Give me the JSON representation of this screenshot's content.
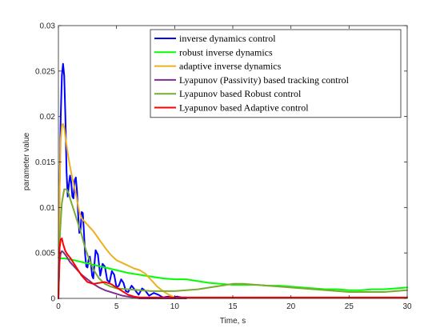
{
  "chart_data": {
    "type": "line",
    "xlabel": "Time, s",
    "ylabel": "parameter value",
    "xlim": [
      0,
      30
    ],
    "ylim": [
      0,
      0.03
    ],
    "xticks": [
      0,
      5,
      10,
      15,
      20,
      25,
      30
    ],
    "yticks": [
      0,
      0.005,
      0.01,
      0.015,
      0.02,
      0.025,
      0.03
    ],
    "xtick_labels": [
      "0",
      "5",
      "10",
      "15",
      "20",
      "25",
      "30"
    ],
    "ytick_labels": [
      "0",
      "0.005",
      "0.01",
      "0.015",
      "0.02",
      "0.025",
      "0.03"
    ],
    "grid": false,
    "legend_position": "top-right",
    "series": [
      {
        "name": "inverse dynamics control",
        "color": "#0000FF",
        "x": [
          0,
          0.1,
          0.2,
          0.3,
          0.4,
          0.5,
          0.6,
          0.7,
          0.8,
          0.9,
          1.0,
          1.1,
          1.2,
          1.3,
          1.4,
          1.5,
          1.6,
          1.7,
          1.8,
          1.9,
          2.0,
          2.1,
          2.2,
          2.3,
          2.4,
          2.5,
          2.6,
          2.7,
          2.8,
          2.9,
          3.0,
          3.2,
          3.4,
          3.6,
          3.8,
          4.0,
          4.2,
          4.4,
          4.6,
          4.8,
          5.0,
          5.2,
          5.4,
          5.6,
          5.8,
          6.0,
          6.3,
          6.6,
          6.9,
          7.2,
          7.5,
          7.8,
          8.2,
          8.6,
          9.0,
          9.4,
          9.8,
          10.2,
          10.6,
          11.0
        ],
        "y": [
          0,
          0.012,
          0.02,
          0.0245,
          0.0258,
          0.0245,
          0.02,
          0.014,
          0.0112,
          0.0125,
          0.0135,
          0.0128,
          0.0112,
          0.011,
          0.013,
          0.0133,
          0.0118,
          0.0092,
          0.0072,
          0.0075,
          0.0095,
          0.0094,
          0.0072,
          0.0048,
          0.0035,
          0.0034,
          0.0043,
          0.0046,
          0.0038,
          0.0025,
          0.0022,
          0.0053,
          0.0048,
          0.0025,
          0.0038,
          0.0035,
          0.002,
          0.0018,
          0.003,
          0.0026,
          0.0012,
          0.0014,
          0.0021,
          0.0017,
          0.0008,
          0.0007,
          0.0014,
          0.0009,
          0.0004,
          0.0011,
          0.0008,
          0.0003,
          0.0006,
          0.0004,
          0.0001,
          0.0002,
          0.0001,
          0.0002,
          0.0001,
          0.0001
        ]
      },
      {
        "name": "robust inverse dynamics",
        "color": "#00FF00",
        "x": [
          0,
          0.2,
          0.5,
          1,
          2,
          3,
          4,
          5,
          6,
          7,
          8,
          9,
          10,
          11,
          12,
          13,
          14,
          15,
          16,
          17,
          18,
          19,
          20,
          21,
          22,
          23,
          24,
          25,
          26,
          27,
          28,
          29,
          30
        ],
        "y": [
          0.0045,
          0.0044,
          0.0044,
          0.0043,
          0.004,
          0.0037,
          0.0034,
          0.0031,
          0.0028,
          0.0026,
          0.0024,
          0.0022,
          0.0021,
          0.0021,
          0.0019,
          0.0017,
          0.0016,
          0.0015,
          0.0015,
          0.0015,
          0.0014,
          0.0014,
          0.0013,
          0.0012,
          0.0011,
          0.001,
          0.001,
          0.0009,
          0.0009,
          0.001,
          0.001,
          0.0011,
          0.0012
        ]
      },
      {
        "name": "adaptive inverse dynamics",
        "color": "#EDB120",
        "x": [
          0,
          0.1,
          0.2,
          0.3,
          0.4,
          0.5,
          0.6,
          0.8,
          1.0,
          1.2,
          1.5,
          1.8,
          2.0,
          2.5,
          3.0,
          3.5,
          4.0,
          4.5,
          5.0,
          5.5,
          6.0,
          6.5,
          7.0,
          7.5,
          8.0,
          8.5,
          9.0,
          9.5,
          10.0,
          10.5
        ],
        "y": [
          0,
          0.012,
          0.0175,
          0.019,
          0.0192,
          0.0188,
          0.0178,
          0.016,
          0.0145,
          0.0132,
          0.0115,
          0.0095,
          0.0088,
          0.0081,
          0.0074,
          0.0065,
          0.0056,
          0.0048,
          0.0042,
          0.0039,
          0.0036,
          0.0033,
          0.0031,
          0.0027,
          0.002,
          0.0013,
          0.0008,
          0.0004,
          0.0001,
          0.0
        ]
      },
      {
        "name": "Lyapunov (Passivity) based tracking control",
        "color": "#7E2F8E",
        "x": [
          0,
          0.1,
          0.2,
          0.3,
          0.4,
          0.6,
          0.8,
          1.0,
          1.5,
          2.0,
          2.5,
          3.0,
          3.5,
          4.0,
          4.5,
          5.0,
          5.5,
          6.0,
          6.5,
          7.0,
          8.0,
          9.0,
          10.0,
          11.0
        ],
        "y": [
          0,
          0.004,
          0.005,
          0.0052,
          0.0051,
          0.0048,
          0.0044,
          0.004,
          0.0033,
          0.0026,
          0.0021,
          0.0016,
          0.0012,
          0.0009,
          0.0007,
          0.0005,
          0.0003,
          0.0002,
          0.0001,
          0.0,
          0.0,
          0.0,
          0.0,
          0.0
        ]
      },
      {
        "name": "Lyapunov based Robust control",
        "color": "#77AC30",
        "x": [
          0,
          0.1,
          0.2,
          0.3,
          0.5,
          0.7,
          0.9,
          1.0,
          1.2,
          1.5,
          1.8,
          2.0,
          2.2,
          2.5,
          3.0,
          3.5,
          4.0,
          4.5,
          5.0,
          6.0,
          7.0,
          8.0,
          9.0,
          10.0,
          11.0,
          12.0,
          13.0,
          14.0,
          15.0,
          16.0,
          17.0,
          18.0,
          19.0,
          20.0,
          21.0,
          22.0,
          23.0,
          24.0,
          25.0,
          26.0,
          27.0,
          28.0,
          29.0,
          30.0
        ],
        "y": [
          0,
          0.006,
          0.0085,
          0.0105,
          0.012,
          0.012,
          0.0115,
          0.011,
          0.0102,
          0.009,
          0.0078,
          0.007,
          0.006,
          0.0048,
          0.0032,
          0.0022,
          0.0016,
          0.0013,
          0.0011,
          0.001,
          0.0009,
          0.0008,
          0.0008,
          0.0008,
          0.0009,
          0.001,
          0.0012,
          0.0014,
          0.0016,
          0.0016,
          0.0015,
          0.0014,
          0.0013,
          0.0012,
          0.0011,
          0.001,
          0.0009,
          0.0008,
          0.0007,
          0.0007,
          0.0007,
          0.0007,
          0.0008,
          0.0009
        ]
      },
      {
        "name": "Lyapunov based Adaptive control",
        "color": "#FF0000",
        "x": [
          0,
          0.1,
          0.2,
          0.3,
          0.4,
          0.6,
          0.8,
          1.0,
          1.5,
          2.0,
          2.5,
          3.0,
          3.5,
          4.0,
          4.5,
          5.0,
          5.5,
          6.0,
          6.5,
          7.0,
          7.5,
          8.0,
          9.0,
          10.0,
          12.0,
          14.0,
          16.0,
          18.0,
          20.0,
          22.0,
          24.0,
          26.0,
          28.0,
          30.0
        ],
        "y": [
          0,
          0.0055,
          0.0065,
          0.0066,
          0.006,
          0.0052,
          0.0048,
          0.0045,
          0.0035,
          0.0025,
          0.0018,
          0.0016,
          0.0017,
          0.0018,
          0.0016,
          0.0012,
          0.0008,
          0.0004,
          0.0002,
          0.0001,
          0.0001,
          0.0001,
          0.0001,
          0.0001,
          0.0001,
          0.0001,
          0.0001,
          0.0001,
          0.0001,
          0.0001,
          0.0001,
          0.0001,
          0.0001,
          0.0001
        ]
      }
    ]
  }
}
